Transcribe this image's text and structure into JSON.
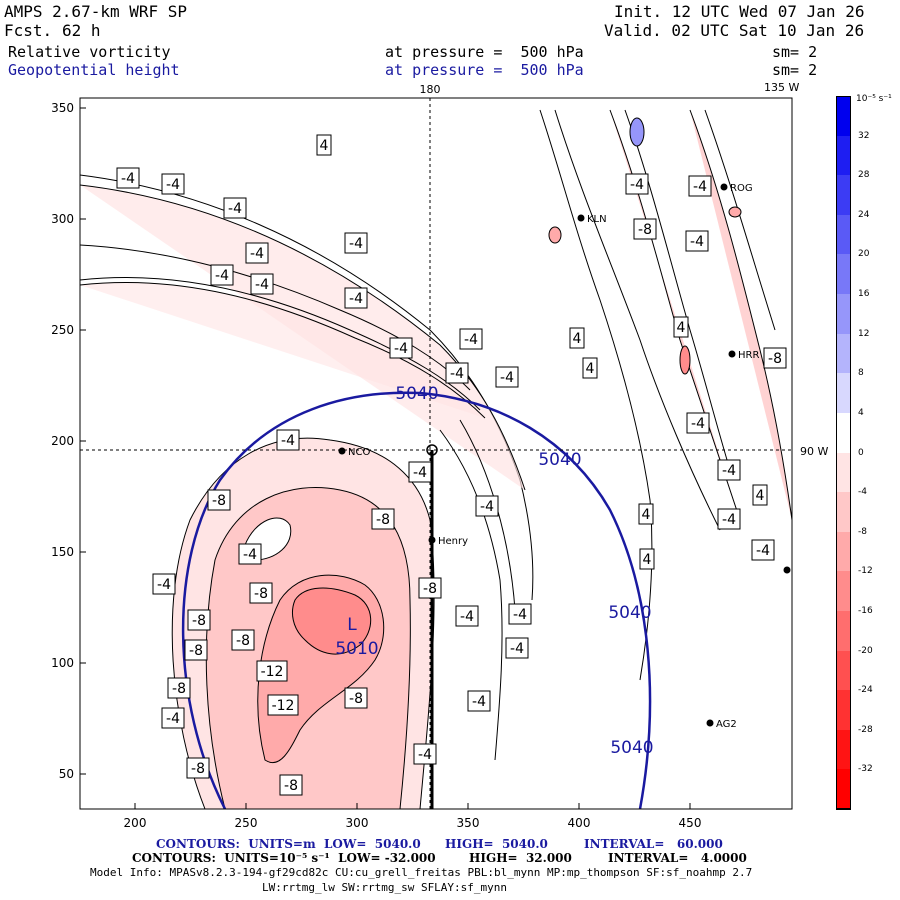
{
  "header": {
    "model": "AMPS 2.67-km WRF SP",
    "fcst_label": "Fcst.",
    "fcst_value": "62 h",
    "init": "Init. 12 UTC Wed 07 Jan 26",
    "valid": "Valid. 02 UTC Sat 10 Jan 26",
    "field1": "Relative vorticity",
    "field1_level": "at pressure =  500 hPa",
    "field1_sm": "sm= 2",
    "field2": "Geopotential height",
    "field2_level": "at pressure =  500 hPa",
    "field2_sm": "sm= 2"
  },
  "map": {
    "lon_top": "180",
    "lon_right_top": "135 W",
    "lat_right": "90 W",
    "x_ticks": [
      "200",
      "250",
      "300",
      "350",
      "400",
      "450"
    ],
    "y_ticks": [
      "350",
      "300",
      "250",
      "200",
      "150",
      "100",
      "50"
    ],
    "low_label": "L",
    "low_value": "5010",
    "height_labels": [
      "5040",
      "5040",
      "5040",
      "5040"
    ],
    "stations": [
      "NCO",
      "Henry",
      "KLN",
      "ROG",
      "HRR",
      "AG2"
    ],
    "vort_labels": [
      "-4",
      "-8",
      "-12",
      "4"
    ]
  },
  "colorbar": {
    "unit": "10⁻⁵ s⁻¹",
    "levels": [
      "32",
      "28",
      "24",
      "20",
      "16",
      "12",
      "8",
      "4",
      "0",
      "-4",
      "-8",
      "-12",
      "-16",
      "-20",
      "-24",
      "-28",
      "-32"
    ],
    "colors": [
      "#0000ee",
      "#1e1ef2",
      "#3c3cf4",
      "#5a5af6",
      "#7878f8",
      "#9696fa",
      "#b4b4fc",
      "#d8d8fe",
      "#ffffff",
      "#ffe4e4",
      "#ffc8c8",
      "#ffaaaa",
      "#ff8c8c",
      "#ff6e6e",
      "#ff5050",
      "#ff3232",
      "#ff1414",
      "#ff0000"
    ]
  },
  "footer": {
    "line1_a": "CONTOURS:  UNITS=m  LOW=  5040.0",
    "line1_b": "HIGH=  5040.0",
    "line1_c": "INTERVAL=   60.000",
    "line2_a": "CONTOURS:  UNITS=10⁻⁵ s⁻¹  LOW= -32.000",
    "line2_b": "HIGH=  32.000",
    "line2_c": "INTERVAL=   4.0000",
    "line3": "Model Info: MPASv8.2.3-194-gf29cd82c CU:cu_grell_freitas PBL:bl_mynn MP:mp_thompson SF:sf_noahmp 2.7",
    "line4": "LW:rrtmg_lw SW:rrtmg_sw SFLAY:sf_mynn"
  }
}
